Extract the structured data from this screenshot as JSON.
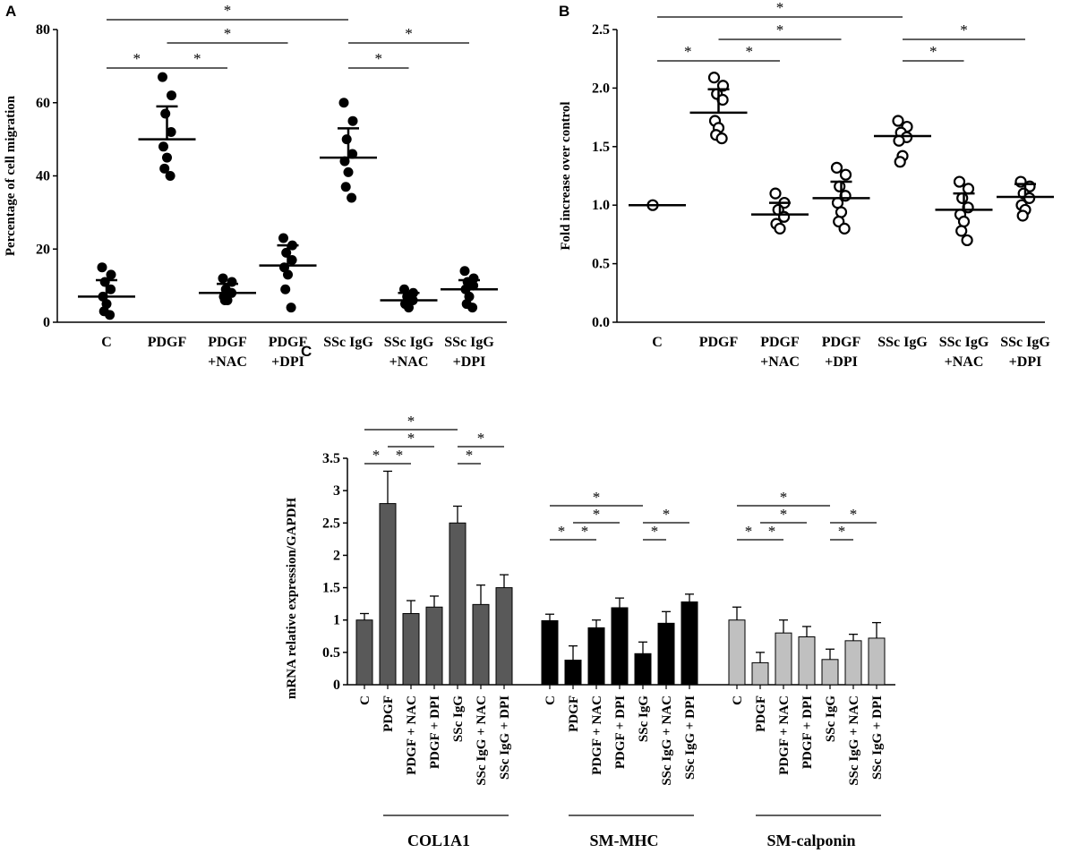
{
  "chart_data": [
    {
      "panel": "A",
      "type": "scatter",
      "ylabel": "Percentage of cell migration",
      "ylim": [
        0,
        80
      ],
      "yticks": [
        "0",
        "20",
        "40",
        "60",
        "80"
      ],
      "categories": [
        {
          "line1": "C",
          "line2": ""
        },
        {
          "line1": "PDGF",
          "line2": ""
        },
        {
          "line1": "PDGF",
          "line2": "+NAC"
        },
        {
          "line1": "PDGF",
          "line2": "+DPI"
        },
        {
          "line1": "SSc IgG",
          "line2": ""
        },
        {
          "line1": "SSc IgG",
          "line2": "+NAC"
        },
        {
          "line1": "SSc IgG",
          "line2": "+DPI"
        }
      ],
      "series": [
        {
          "mean": 7,
          "sd_upper": 11.5,
          "points": [
            15,
            13,
            11,
            9,
            7,
            5,
            3,
            2
          ]
        },
        {
          "mean": 50,
          "sd_upper": 59,
          "points": [
            67,
            62,
            57,
            52,
            48,
            45,
            42,
            40
          ]
        },
        {
          "mean": 8,
          "sd_upper": 10.5,
          "points": [
            12,
            11,
            9,
            8,
            7,
            6,
            6
          ]
        },
        {
          "mean": 15.5,
          "sd_upper": 21,
          "points": [
            23,
            21,
            19,
            17,
            15,
            13,
            9,
            4
          ]
        },
        {
          "mean": 45,
          "sd_upper": 53,
          "points": [
            60,
            55,
            50,
            46,
            44,
            41,
            37,
            34
          ]
        },
        {
          "mean": 6,
          "sd_upper": 8,
          "points": [
            9,
            8,
            7,
            6,
            5,
            4
          ]
        },
        {
          "mean": 9,
          "sd_upper": 11.5,
          "points": [
            14,
            12,
            11,
            10,
            9,
            7,
            5,
            4
          ]
        }
      ],
      "significance": [
        {
          "from": 0,
          "to": 1,
          "label": "*"
        },
        {
          "from": 1,
          "to": 2,
          "label": "*"
        },
        {
          "from": 1,
          "to": 3,
          "label": "*"
        },
        {
          "from": 0,
          "to": 4,
          "label": "*"
        },
        {
          "from": 4,
          "to": 5,
          "label": "*"
        },
        {
          "from": 4,
          "to": 6,
          "label": "*"
        }
      ]
    },
    {
      "panel": "B",
      "type": "scatter",
      "ylabel": "Fold increase over control",
      "ylim": [
        0,
        2.5
      ],
      "yticks": [
        "0.0",
        "0.5",
        "1.0",
        "1.5",
        "2.0",
        "2.5"
      ],
      "categories": [
        {
          "line1": "C",
          "line2": ""
        },
        {
          "line1": "PDGF",
          "line2": ""
        },
        {
          "line1": "PDGF",
          "line2": "+NAC"
        },
        {
          "line1": "PDGF",
          "line2": "+DPI"
        },
        {
          "line1": "SSc IgG",
          "line2": ""
        },
        {
          "line1": "SSc IgG",
          "line2": "+NAC"
        },
        {
          "line1": "SSc IgG",
          "line2": "+DPI"
        }
      ],
      "series": [
        {
          "mean": 1.0,
          "sd_upper": 1.0,
          "points": [
            1.0
          ]
        },
        {
          "mean": 1.79,
          "sd_upper": 1.99,
          "points": [
            2.09,
            2.02,
            1.95,
            1.9,
            1.72,
            1.66,
            1.6,
            1.57
          ]
        },
        {
          "mean": 0.92,
          "sd_upper": 1.02,
          "points": [
            1.1,
            1.02,
            0.96,
            0.9,
            0.84,
            0.8
          ]
        },
        {
          "mean": 1.06,
          "sd_upper": 1.2,
          "points": [
            1.32,
            1.26,
            1.16,
            1.08,
            1.02,
            0.94,
            0.86,
            0.8
          ]
        },
        {
          "mean": 1.59,
          "sd_upper": 1.59,
          "points": [
            1.72,
            1.67,
            1.62,
            1.58,
            1.55,
            1.42,
            1.37
          ]
        },
        {
          "mean": 0.96,
          "sd_upper": 1.1,
          "points": [
            1.2,
            1.14,
            1.06,
            0.98,
            0.92,
            0.86,
            0.78,
            0.7
          ]
        },
        {
          "mean": 1.07,
          "sd_upper": 1.18,
          "points": [
            1.2,
            1.16,
            1.1,
            1.06,
            1.0,
            0.96,
            0.91
          ]
        }
      ],
      "significance": [
        {
          "from": 0,
          "to": 1,
          "label": "*"
        },
        {
          "from": 1,
          "to": 2,
          "label": "*"
        },
        {
          "from": 1,
          "to": 3,
          "label": "*"
        },
        {
          "from": 0,
          "to": 4,
          "label": "*"
        },
        {
          "from": 4,
          "to": 5,
          "label": "*"
        },
        {
          "from": 4,
          "to": 6,
          "label": "*"
        }
      ]
    },
    {
      "panel": "C",
      "type": "bar",
      "ylabel": "mRNA relative expression/GAPDH",
      "ylim": [
        0,
        3.5
      ],
      "yticks": [
        "0",
        "0.5",
        "1",
        "1.5",
        "2",
        "2.5",
        "3",
        "3.5"
      ],
      "categories": [
        "C",
        "PDGF",
        "PDGF + NAC",
        "PDGF + DPI",
        "SSc IgG",
        "SSc IgG + NAC",
        "SSc IgG + DPI"
      ],
      "groups": [
        {
          "name": "COL1A1",
          "color": "#595959",
          "values": [
            1.0,
            2.8,
            1.1,
            1.2,
            2.5,
            1.24,
            1.5
          ],
          "errors": [
            0.1,
            0.5,
            0.2,
            0.17,
            0.26,
            0.3,
            0.2
          ]
        },
        {
          "name": "SM-MHC",
          "color": "#000000",
          "values": [
            0.99,
            0.38,
            0.88,
            1.19,
            0.48,
            0.95,
            1.28
          ],
          "errors": [
            0.1,
            0.22,
            0.12,
            0.15,
            0.18,
            0.18,
            0.12
          ]
        },
        {
          "name": "SM-calponin",
          "color": "#c0c0c0",
          "values": [
            1.0,
            0.34,
            0.8,
            0.74,
            0.39,
            0.68,
            0.72
          ],
          "errors": [
            0.2,
            0.16,
            0.2,
            0.16,
            0.16,
            0.1,
            0.24
          ]
        }
      ],
      "significance": [
        {
          "from": 0,
          "to": 1,
          "label": "*"
        },
        {
          "from": 1,
          "to": 2,
          "label": "*"
        },
        {
          "from": 1,
          "to": 3,
          "label": "*"
        },
        {
          "from": 0,
          "to": 4,
          "label": "*"
        },
        {
          "from": 4,
          "to": 5,
          "label": "*"
        },
        {
          "from": 4,
          "to": 6,
          "label": "*"
        }
      ]
    }
  ]
}
